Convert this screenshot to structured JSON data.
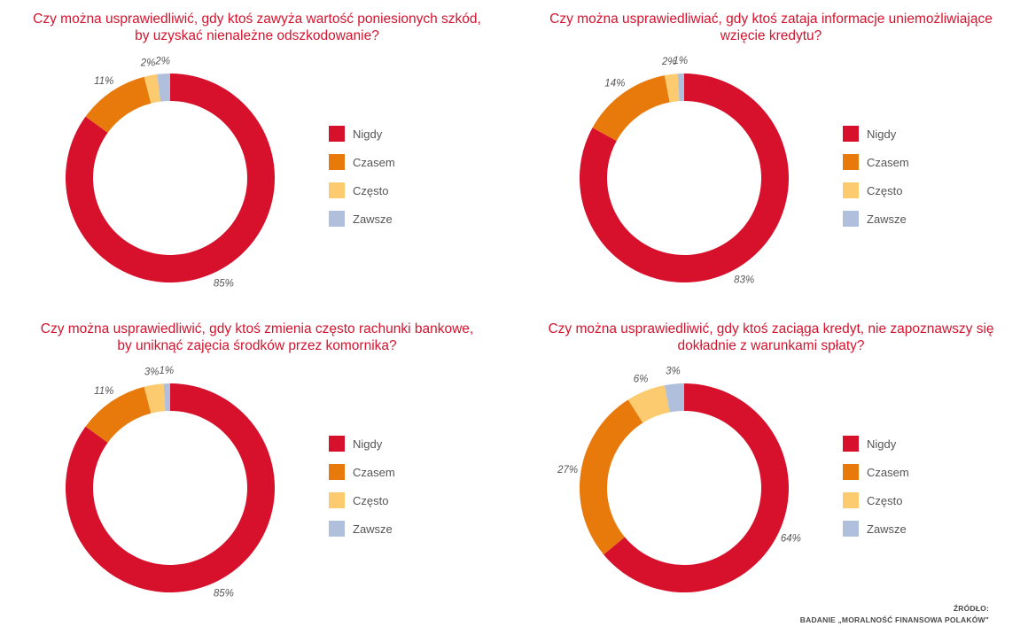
{
  "legend": [
    {
      "label": "Nigdy",
      "color": "#d7102b"
    },
    {
      "label": "Czasem",
      "color": "#e87a0c"
    },
    {
      "label": "Często",
      "color": "#fccb6f"
    },
    {
      "label": "Zawsze",
      "color": "#b0bfdb"
    }
  ],
  "source": {
    "line1": "ŹRÓDŁO:",
    "line2": "BADANIE „MORALNOŚĆ FINANSOWA POLAKÓW\""
  },
  "chart_data": [
    {
      "type": "pie",
      "title_lines": [
        "Czy można usprawiedliwić, gdy ktoś zawyża wartość poniesionych szkód,",
        "by uzyskać nienależne odszkodowanie?"
      ],
      "categories": [
        "Nigdy",
        "Czasem",
        "Często",
        "Zawsze"
      ],
      "values": [
        85,
        11,
        2,
        2
      ],
      "labels": [
        "85%",
        "11%",
        "2%",
        "2%"
      ]
    },
    {
      "type": "pie",
      "title_lines": [
        "Czy można usprawiedliwiać, gdy ktoś zataja informacje uniemożliwiające",
        "wzięcie kredytu?"
      ],
      "categories": [
        "Nigdy",
        "Czasem",
        "Często",
        "Zawsze"
      ],
      "values": [
        83,
        14,
        2,
        1
      ],
      "labels": [
        "83%",
        "14%",
        "2%",
        "1%"
      ]
    },
    {
      "type": "pie",
      "title_lines": [
        "Czy można usprawiedliwić, gdy ktoś zmienia często rachunki bankowe,",
        "by uniknąć zajęcia środków przez komornika?"
      ],
      "categories": [
        "Nigdy",
        "Czasem",
        "Często",
        "Zawsze"
      ],
      "values": [
        85,
        11,
        3,
        1
      ],
      "labels": [
        "85%",
        "11%",
        "3%",
        "1%"
      ]
    },
    {
      "type": "pie",
      "title_lines": [
        "Czy można usprawiedliwić, gdy ktoś zaciąga kredyt, nie zapoznawszy się",
        "dokładnie z warunkami spłaty?"
      ],
      "categories": [
        "Nigdy",
        "Czasem",
        "Często",
        "Zawsze"
      ],
      "values": [
        64,
        27,
        6,
        3
      ],
      "labels": [
        "64%",
        "27%",
        "6%",
        "3%"
      ]
    }
  ]
}
